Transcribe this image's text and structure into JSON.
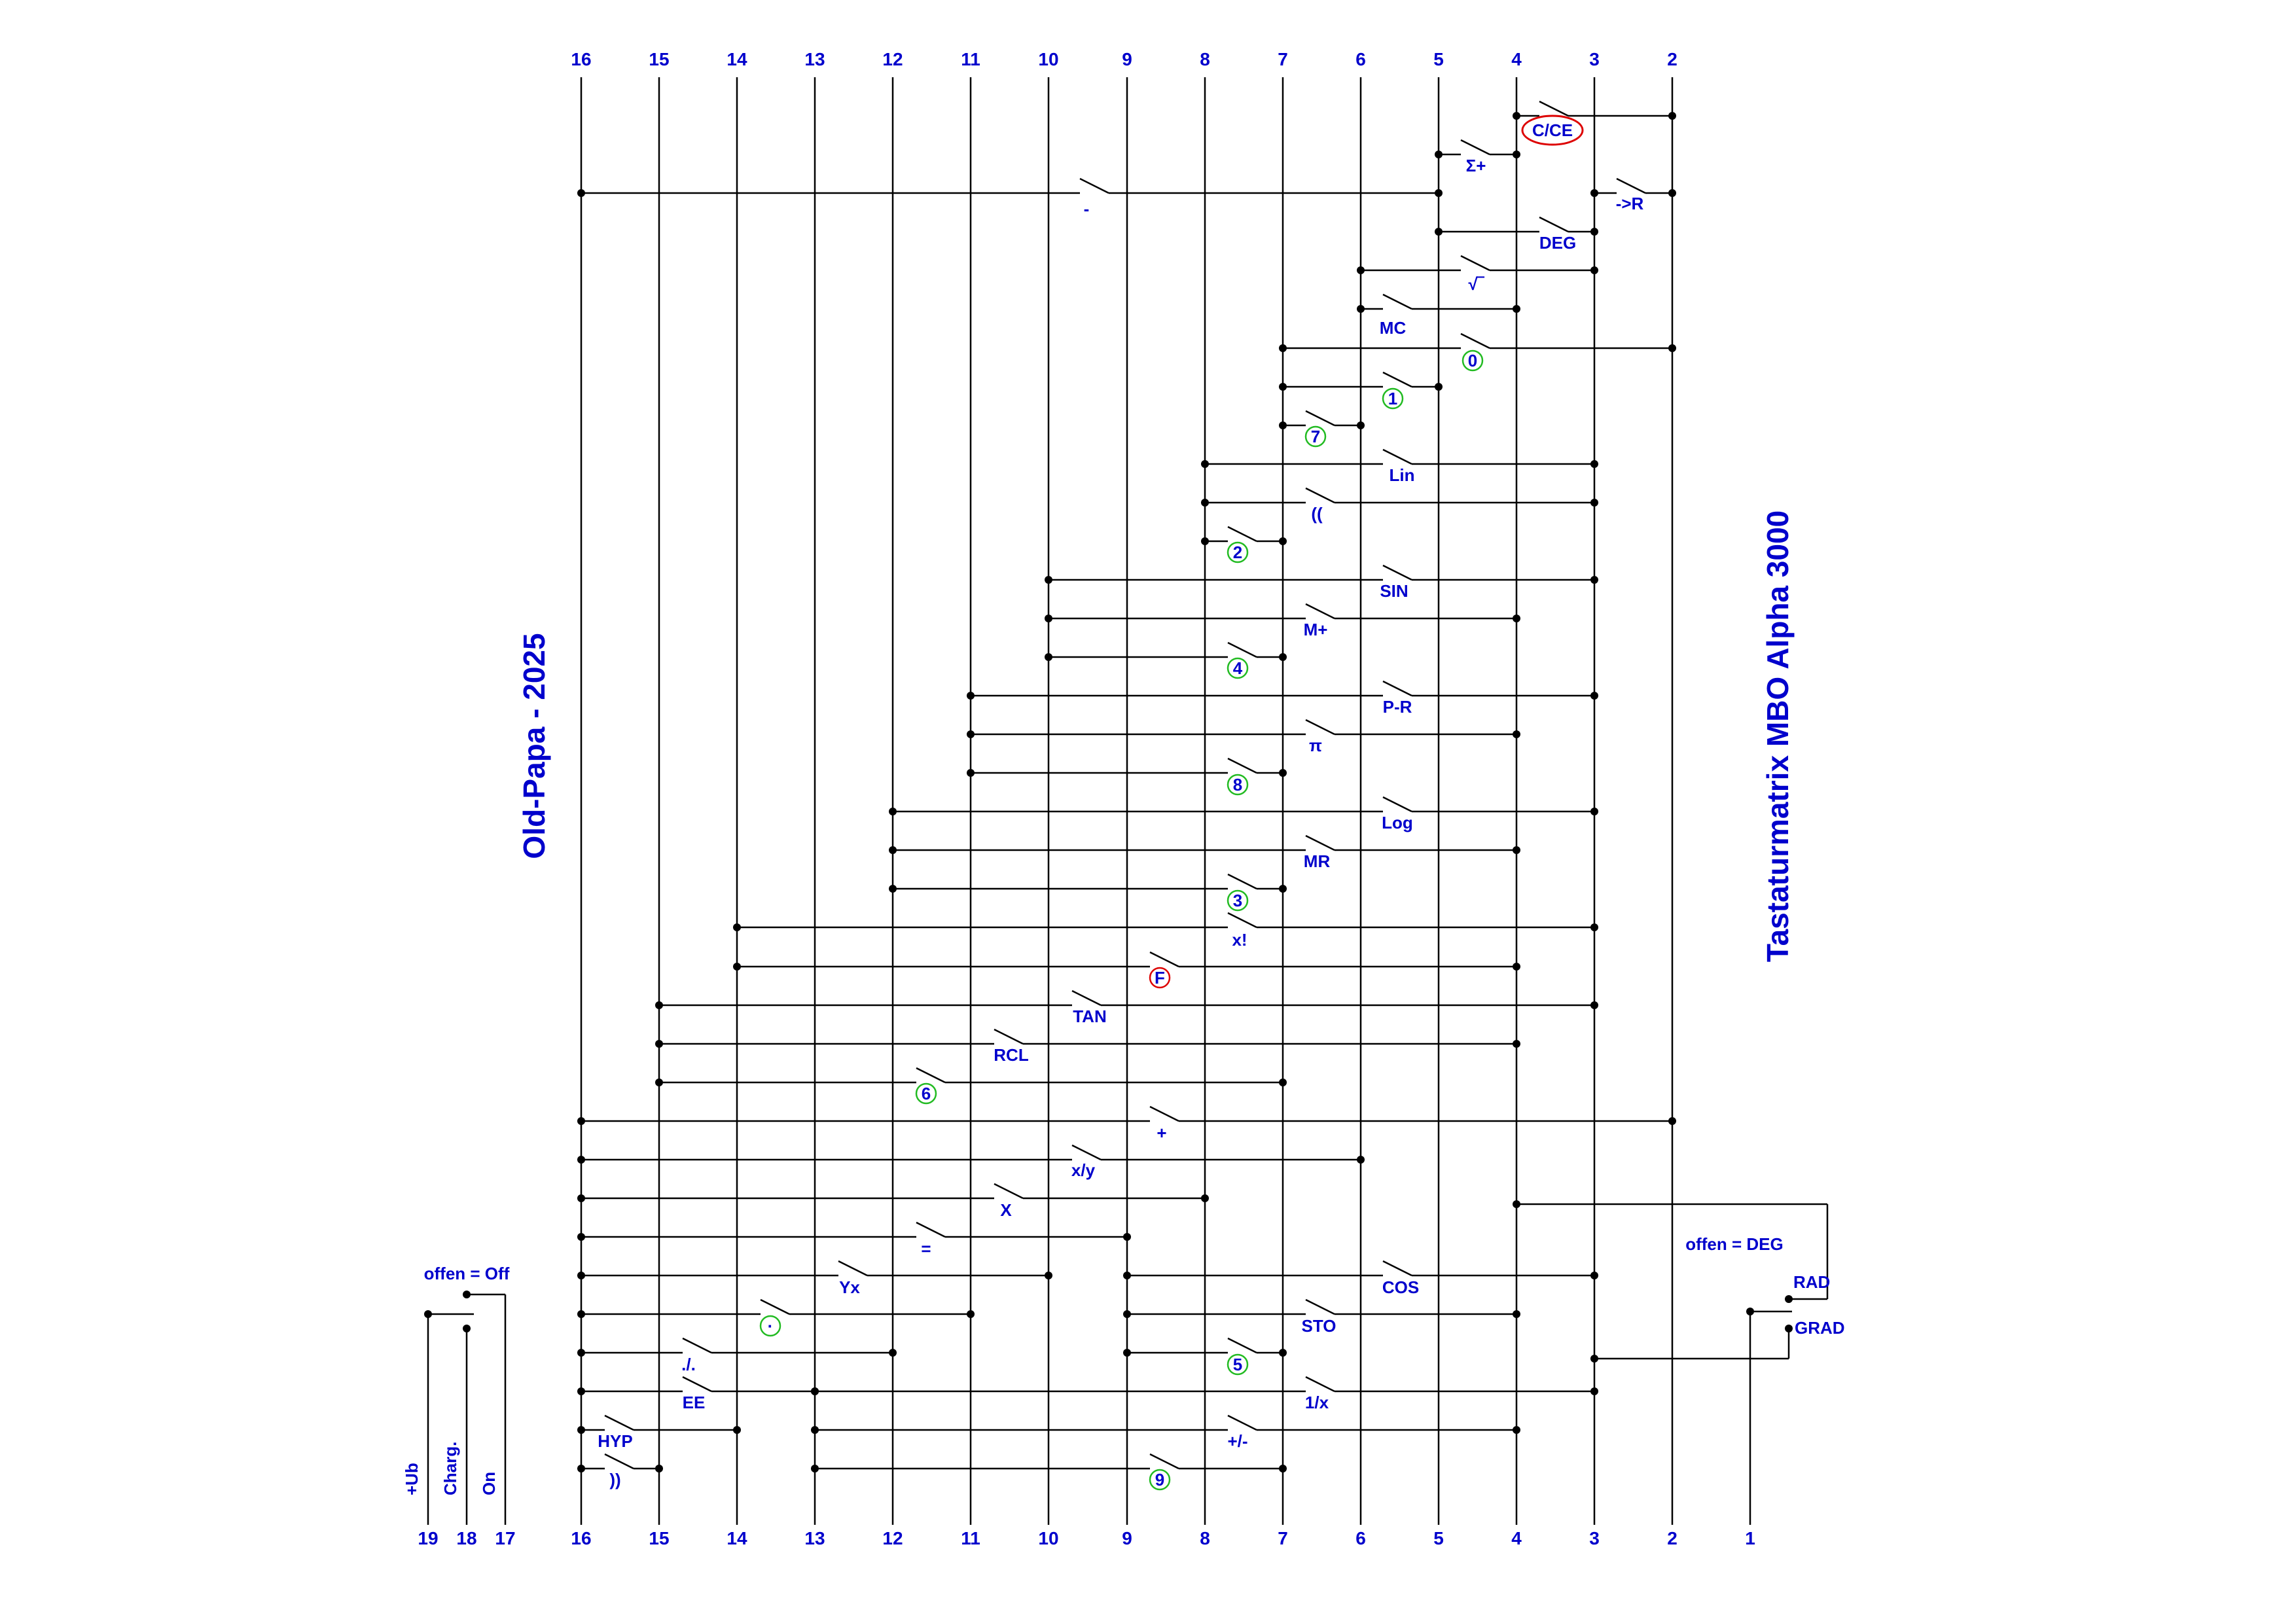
{
  "title": "Tastaturmatrix MBO Alpha 3000",
  "author": "Old-Papa - 2025",
  "colors": {
    "line": "#000000",
    "text": "#0000cc",
    "green_circle": "#22bb22",
    "red_circle": "#dd0000"
  },
  "lines": [
    {
      "n": "16"
    },
    {
      "n": "15"
    },
    {
      "n": "14"
    },
    {
      "n": "13"
    },
    {
      "n": "12"
    },
    {
      "n": "11"
    },
    {
      "n": "10"
    },
    {
      "n": "9"
    },
    {
      "n": "8"
    },
    {
      "n": "7"
    },
    {
      "n": "6"
    },
    {
      "n": "5"
    },
    {
      "n": "4"
    },
    {
      "n": "3"
    },
    {
      "n": "2"
    },
    {
      "n": "1"
    },
    {
      "n": "19"
    },
    {
      "n": "18"
    },
    {
      "n": "17"
    }
  ],
  "keys": [
    {
      "label": "C/CE",
      "a": "4",
      "b": "2",
      "mark": "red-oval"
    },
    {
      "label": "Σ+",
      "a": "5",
      "b": "4"
    },
    {
      "label": "-",
      "a": "16",
      "b": "5"
    },
    {
      "label": "->R",
      "a": "3",
      "b": "2"
    },
    {
      "label": "DEG",
      "a": "5",
      "b": "3"
    },
    {
      "label": "√‾",
      "a": "6",
      "b": "3"
    },
    {
      "label": "MC",
      "a": "6",
      "b": "4"
    },
    {
      "label": "0",
      "a": "7",
      "b": "2",
      "mark": "green"
    },
    {
      "label": "1",
      "a": "7",
      "b": "5",
      "mark": "green"
    },
    {
      "label": "7",
      "a": "7",
      "b": "6",
      "mark": "green"
    },
    {
      "label": "Lin",
      "a": "8",
      "b": "3"
    },
    {
      "label": "((",
      "a": "8",
      "b": "3"
    },
    {
      "label": "2",
      "a": "8",
      "b": "7",
      "mark": "green"
    },
    {
      "label": "SIN",
      "a": "10",
      "b": "3"
    },
    {
      "label": "M+",
      "a": "10",
      "b": "4"
    },
    {
      "label": "4",
      "a": "10",
      "b": "7",
      "mark": "green"
    },
    {
      "label": "P-R",
      "a": "11",
      "b": "3"
    },
    {
      "label": "π",
      "a": "11",
      "b": "4"
    },
    {
      "label": "8",
      "a": "11",
      "b": "7",
      "mark": "green"
    },
    {
      "label": "Log",
      "a": "12",
      "b": "3"
    },
    {
      "label": "MR",
      "a": "12",
      "b": "4"
    },
    {
      "label": "3",
      "a": "12",
      "b": "7",
      "mark": "green"
    },
    {
      "label": "x!",
      "a": "14",
      "b": "3"
    },
    {
      "label": "F",
      "a": "14",
      "b": "4",
      "mark": "red"
    },
    {
      "label": "TAN",
      "a": "15",
      "b": "3"
    },
    {
      "label": "RCL",
      "a": "15",
      "b": "4"
    },
    {
      "label": "6",
      "a": "15",
      "b": "7",
      "mark": "green"
    },
    {
      "label": "+",
      "a": "16",
      "b": "2"
    },
    {
      "label": "x/y",
      "a": "16",
      "b": "6"
    },
    {
      "label": "X",
      "a": "16",
      "b": "8"
    },
    {
      "label": "=",
      "a": "16",
      "b": "9"
    },
    {
      "label": "Yx",
      "a": "16",
      "b": "10"
    },
    {
      "label": "COS",
      "a": "9",
      "b": "3"
    },
    {
      "label": "·",
      "a": "16",
      "b": "11",
      "mark": "green"
    },
    {
      "label": "STO",
      "a": "9",
      "b": "4"
    },
    {
      "label": "./.",
      "a": "16",
      "b": "12"
    },
    {
      "label": "5",
      "a": "9",
      "b": "7",
      "mark": "green"
    },
    {
      "label": "EE",
      "a": "16",
      "b": "13"
    },
    {
      "label": "1/x",
      "a": "13",
      "b": "3"
    },
    {
      "label": "HYP",
      "a": "16",
      "b": "14"
    },
    {
      "label": "+/-",
      "a": "13",
      "b": "4"
    },
    {
      "label": "))",
      "a": "16",
      "b": "15"
    },
    {
      "label": "9",
      "a": "13",
      "b": "7",
      "mark": "green"
    }
  ],
  "switches": {
    "power_note": "offen = Off",
    "mode_note": "offen = DEG",
    "rad_label": "RAD",
    "grad_label": "GRAD",
    "ub_label": "+Ub",
    "charg_label": "Charg.",
    "on_label": "On"
  }
}
